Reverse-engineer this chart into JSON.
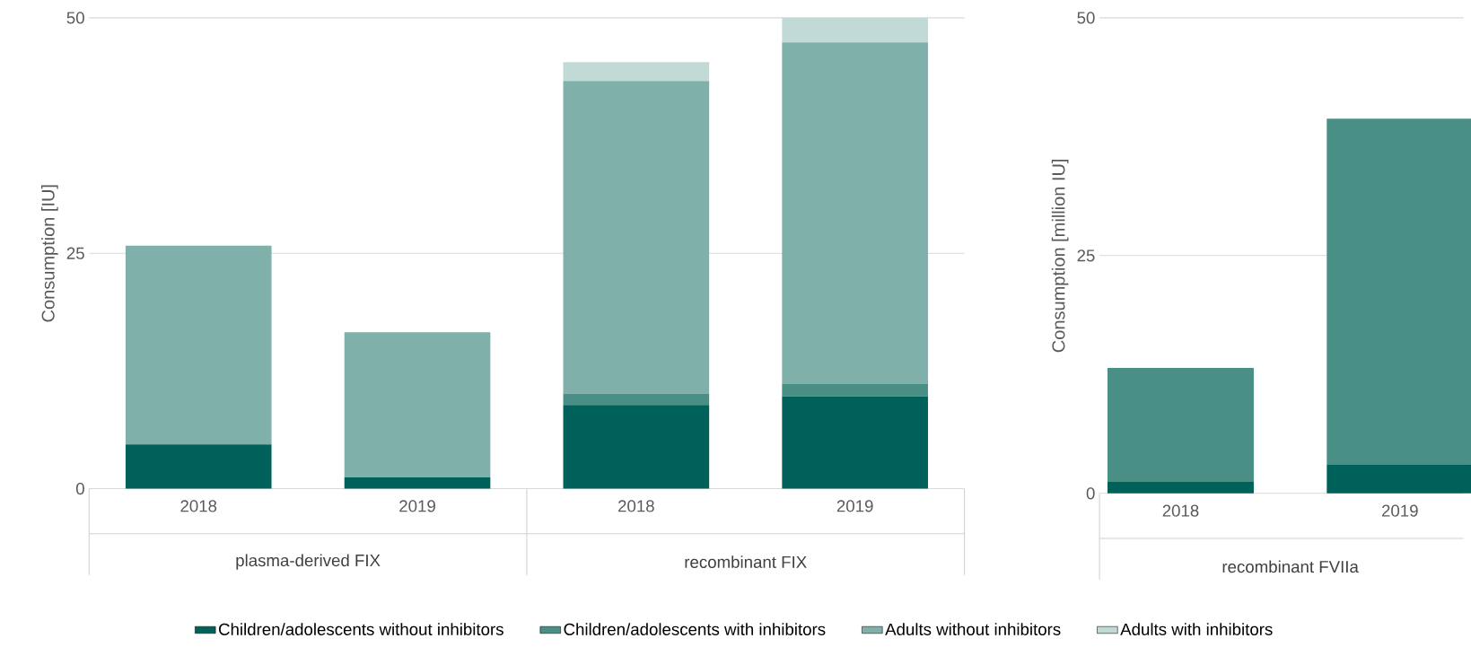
{
  "chart_data": [
    {
      "type": "bar",
      "stacked": true,
      "ylabel": "Consumption [IU]",
      "categories": [
        "2018",
        "2019",
        "2018",
        "2019"
      ],
      "annotations": [
        "plasma-derived FIX",
        "recombinant FIX"
      ],
      "series": [
        {
          "name": "Children/adolescents without inhibitors",
          "color": "#00605a",
          "values": [
            4.7,
            1.2,
            8.9,
            9.8
          ]
        },
        {
          "name": "Children/adolescents with inhibitors",
          "color": "#4a8f86",
          "values": [
            0,
            0,
            1.2,
            1.3
          ]
        },
        {
          "name": "Adults without inhibitors",
          "color": "#7fb0aa",
          "values": [
            21.1,
            15.4,
            33.2,
            36.3
          ]
        },
        {
          "name": "Adults with inhibitors",
          "color": "#c2dad6",
          "values": [
            0,
            0,
            2.0,
            2.6
          ]
        }
      ],
      "ylim": [
        0,
        50
      ],
      "yticks": [
        0,
        25,
        50
      ],
      "grid": "y",
      "legend": "bottom"
    },
    {
      "type": "bar",
      "stacked": true,
      "ylabel": "Consumption [million IU]",
      "categories": [
        "2018",
        "2019"
      ],
      "annotations": [
        "recombinant FVIIa"
      ],
      "series": [
        {
          "color": "#00605a",
          "values": [
            1.2,
            3.0
          ]
        },
        {
          "color": "#4a8f86",
          "values": [
            12.0,
            36.4
          ]
        }
      ],
      "ylim": [
        0,
        50
      ],
      "yticks": [
        0,
        25,
        50
      ],
      "grid": "y"
    }
  ]
}
